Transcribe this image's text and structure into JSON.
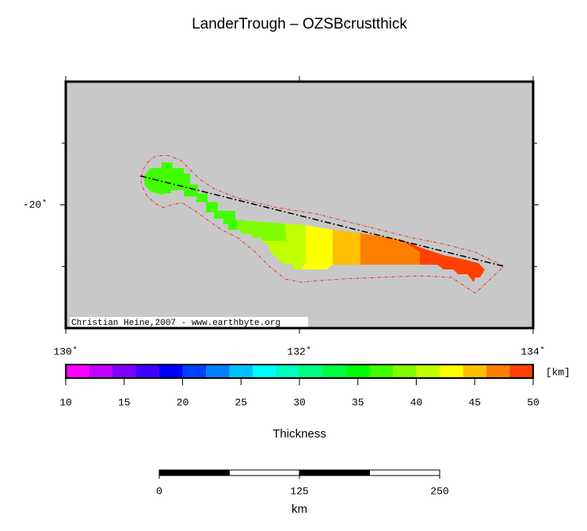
{
  "title": "LanderTrough – OZSBcrustthick",
  "map": {
    "xlim": [
      130,
      134
    ],
    "ylim": [
      -21,
      -19
    ],
    "xticks": [
      {
        "value": 130,
        "label": "130˚"
      },
      {
        "value": 132,
        "label": "132˚"
      },
      {
        "value": 134,
        "label": "134˚"
      }
    ],
    "yticks": [
      {
        "value": -20,
        "label": "-20˚"
      }
    ],
    "minor_yticks": [
      -20.5,
      -19.5
    ],
    "credit": "Christian Heine,2007 - www.earthbyte.org"
  },
  "colorbar": {
    "lim": [
      10,
      50
    ],
    "ticks": [
      10,
      15,
      20,
      25,
      30,
      35,
      40,
      45,
      50
    ],
    "colors": [
      "#ff00ff",
      "#c000ff",
      "#8000ff",
      "#4000ff",
      "#0000ff",
      "#0040ff",
      "#0080ff",
      "#00c0ff",
      "#00ffff",
      "#00ffc0",
      "#00ff80",
      "#00ff40",
      "#00ff00",
      "#40ff00",
      "#80ff00",
      "#c0ff00",
      "#ffff00",
      "#ffc000",
      "#ff8000",
      "#ff4000"
    ],
    "unit": "[km]",
    "label": "Thickness"
  },
  "scalebar": {
    "lim": [
      0,
      250
    ],
    "ticks": [
      0,
      125,
      250
    ],
    "label": "km"
  }
}
